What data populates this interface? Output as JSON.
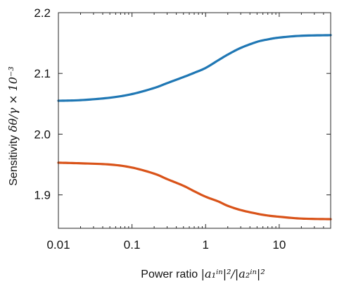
{
  "chart_data": {
    "type": "line",
    "xscale": "log",
    "xlim": [
      0.01,
      50
    ],
    "ylim": [
      1.845,
      2.2
    ],
    "xticks": [
      0.01,
      0.1,
      1,
      10
    ],
    "xtick_labels": [
      "0.01",
      "0.1",
      "1",
      "10"
    ],
    "yticks": [
      1.9,
      2.0,
      2.1,
      2.2
    ],
    "ytick_labels": [
      "1.9",
      "2.0",
      "2.1",
      "2.2"
    ],
    "xlabel_text": "Power ratio",
    "xlabel_math": "|a₁ⁱⁿ|²/|a₂ⁱⁿ|²",
    "ylabel_text": "Sensitivity",
    "ylabel_math": "δθ/γ × 10⁻³",
    "grid": false,
    "series": [
      {
        "color": "#1f77b4",
        "x": [
          0.01,
          0.02,
          0.05,
          0.1,
          0.2,
          0.3,
          0.5,
          0.7,
          1,
          1.5,
          2,
          3,
          5,
          7,
          10,
          20,
          50
        ],
        "y": [
          2.055,
          2.056,
          2.06,
          2.066,
          2.076,
          2.084,
          2.094,
          2.101,
          2.109,
          2.122,
          2.131,
          2.142,
          2.152,
          2.156,
          2.159,
          2.162,
          2.163
        ]
      },
      {
        "color": "#d95319",
        "x": [
          0.01,
          0.02,
          0.05,
          0.1,
          0.2,
          0.3,
          0.5,
          0.7,
          1,
          1.5,
          2,
          3,
          5,
          7,
          10,
          20,
          50
        ],
        "y": [
          1.953,
          1.952,
          1.95,
          1.945,
          1.935,
          1.926,
          1.915,
          1.906,
          1.897,
          1.889,
          1.882,
          1.875,
          1.869,
          1.866,
          1.864,
          1.861,
          1.86
        ]
      }
    ]
  }
}
